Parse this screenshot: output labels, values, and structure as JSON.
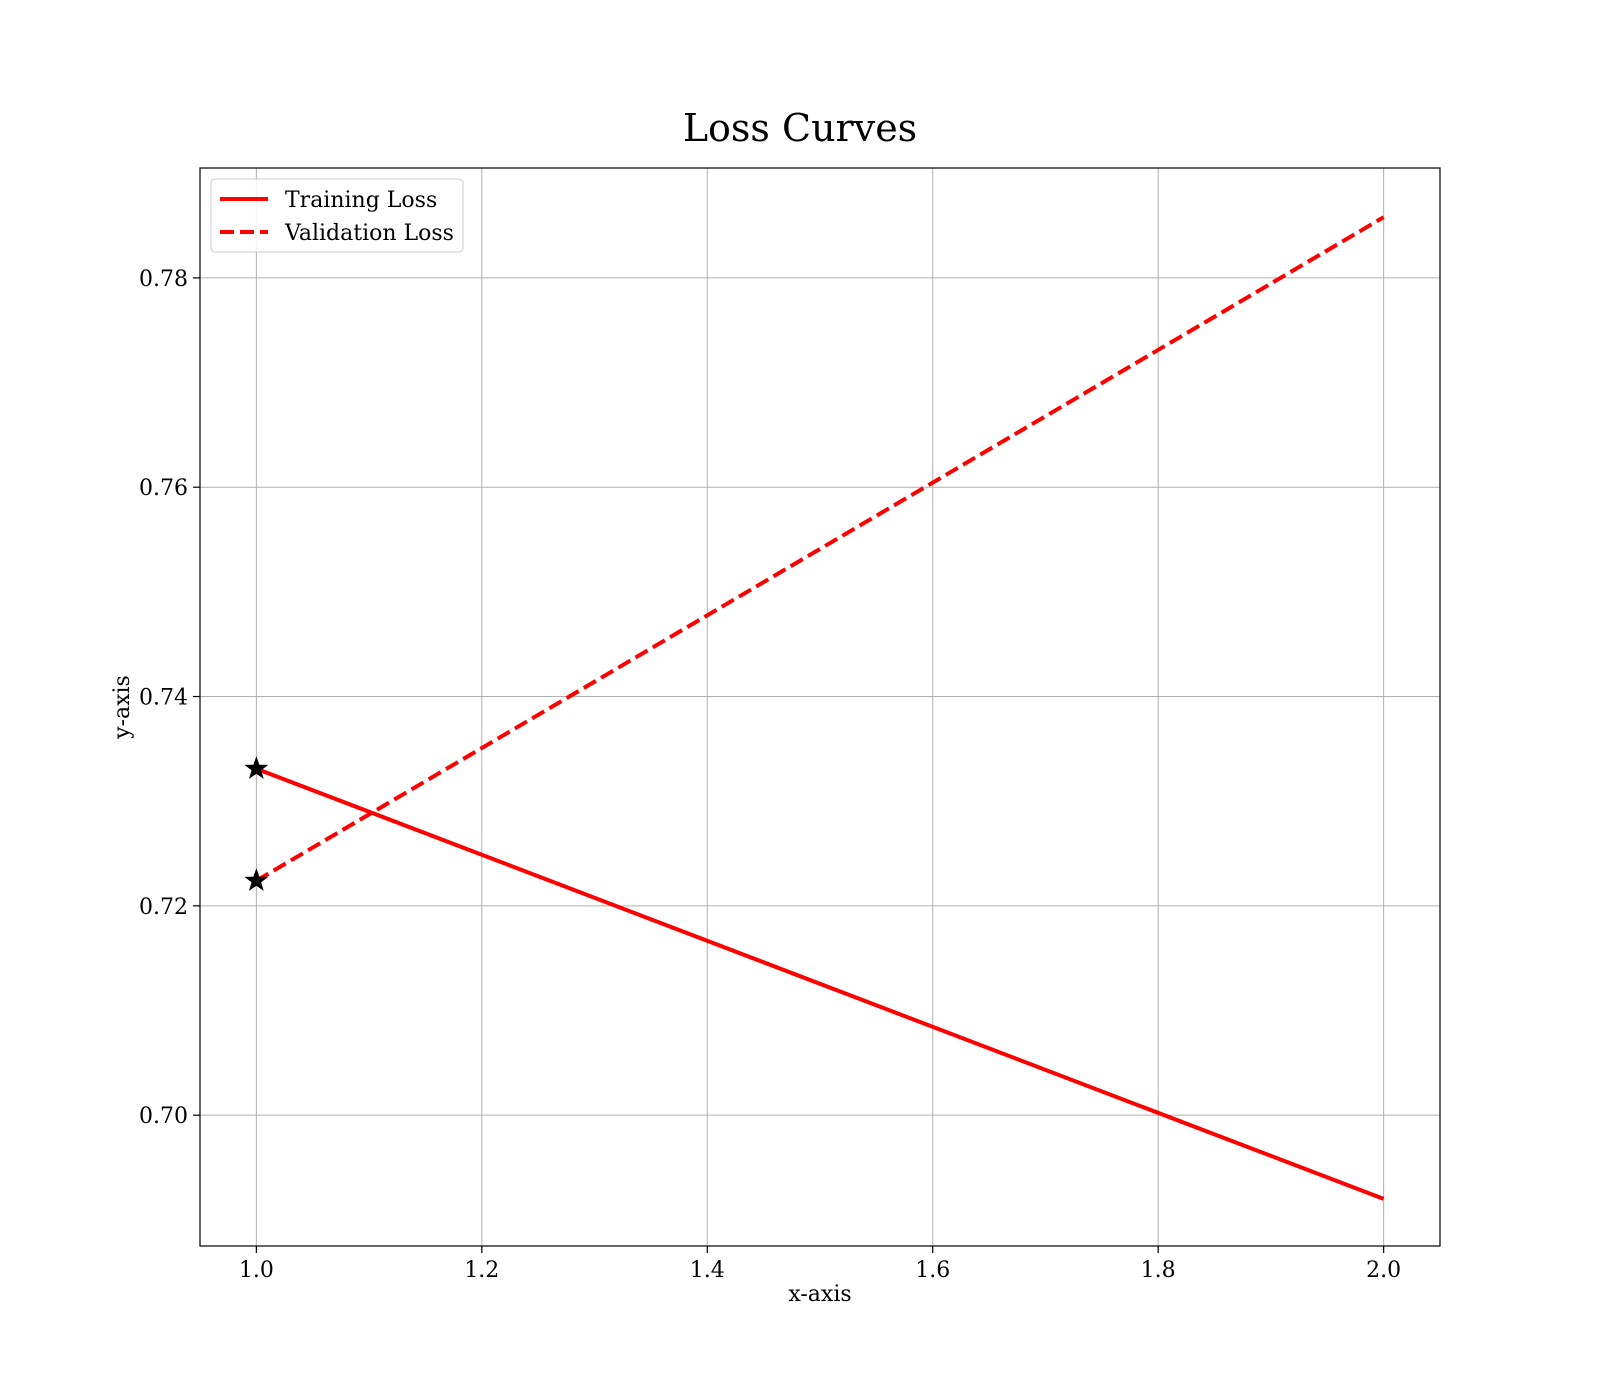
{
  "chart_data": {
    "type": "line",
    "title": "Loss Curves",
    "xlabel": "x-axis",
    "ylabel": "y-axis",
    "xlim": [
      0.95,
      2.05
    ],
    "ylim": [
      0.6875,
      0.7905
    ],
    "x_ticks": [
      {
        "value": 1.0,
        "label": "1.0"
      },
      {
        "value": 1.2,
        "label": "1.2"
      },
      {
        "value": 1.4,
        "label": "1.4"
      },
      {
        "value": 1.6,
        "label": "1.6"
      },
      {
        "value": 1.8,
        "label": "1.8"
      },
      {
        "value": 2.0,
        "label": "2.0"
      }
    ],
    "y_ticks": [
      {
        "value": 0.7,
        "label": "0.70"
      },
      {
        "value": 0.72,
        "label": "0.72"
      },
      {
        "value": 0.74,
        "label": "0.74"
      },
      {
        "value": 0.76,
        "label": "0.76"
      },
      {
        "value": 0.78,
        "label": "0.78"
      }
    ],
    "grid": true,
    "legend_position": "top-left",
    "series": [
      {
        "name": "Training Loss",
        "x": [
          1,
          2
        ],
        "y": [
          0.7331,
          0.692
        ],
        "color": "#ff0000",
        "line_style": "solid",
        "marker": "star",
        "marker_points": [
          0
        ]
      },
      {
        "name": "Validation Loss",
        "x": [
          1,
          2
        ],
        "y": [
          0.7224,
          0.7858
        ],
        "color": "#ff0000",
        "line_style": "dashed",
        "marker": "star",
        "marker_points": [
          0
        ]
      }
    ]
  }
}
